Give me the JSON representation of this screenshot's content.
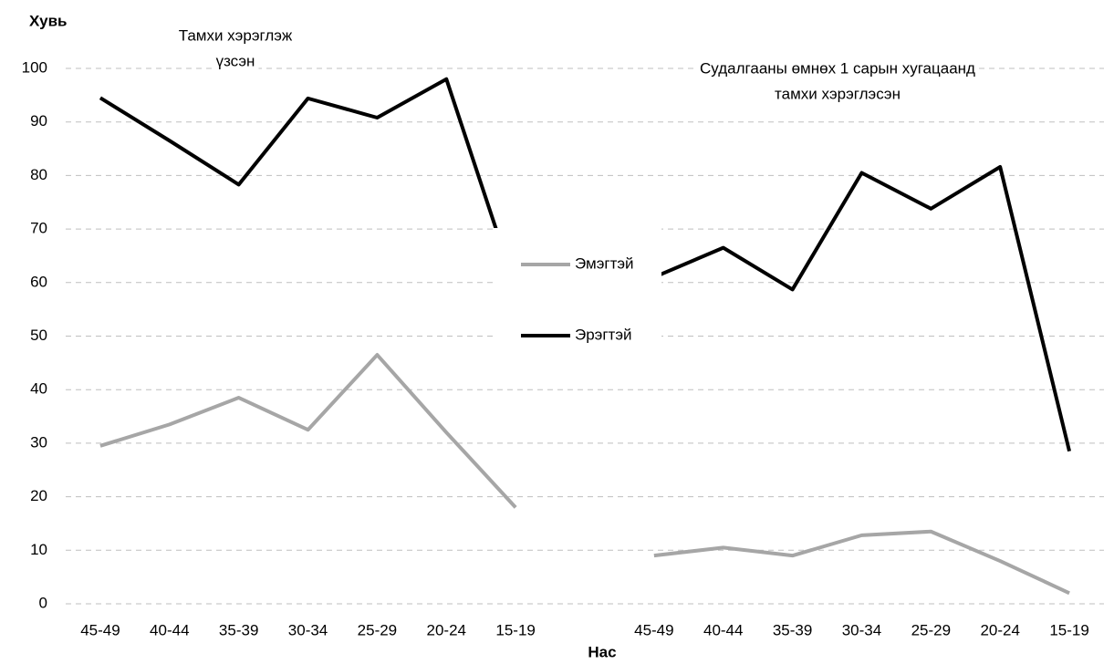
{
  "chart_data": {
    "type": "line",
    "y_label": "Хувь",
    "x_label": "Нас",
    "annotations": [
      [
        "Тамхи хэрэглэж",
        "үзсэн"
      ],
      [
        "Судалгааны өмнөх 1 сарын хугацаанд",
        "тамхи хэрэглэсэн"
      ]
    ],
    "categories": [
      "45-49",
      "40-44",
      "35-39",
      "30-34",
      "25-29",
      "20-24",
      "15-19",
      null,
      "45-49",
      "40-44",
      "35-39",
      "30-34",
      "25-29",
      "20-24",
      "15-19"
    ],
    "series": [
      {
        "name": "Эмэгтэй",
        "color": "#a6a6a6",
        "values": [
          29.5,
          33.5,
          38.5,
          32.5,
          46.5,
          32,
          18,
          null,
          9,
          10.5,
          9,
          12.8,
          13.5,
          8,
          2
        ]
      },
      {
        "name": "Эрэгтэй",
        "color": "#000000",
        "values": [
          94.5,
          86.5,
          78.3,
          94.4,
          90.8,
          98,
          59,
          null,
          61,
          66.5,
          58.7,
          80.5,
          73.8,
          81.6,
          28.5
        ]
      }
    ],
    "ylim": [
      0,
      100
    ],
    "yticks": [
      0,
      10,
      20,
      30,
      40,
      50,
      60,
      70,
      80,
      90,
      100
    ],
    "grid": true
  }
}
